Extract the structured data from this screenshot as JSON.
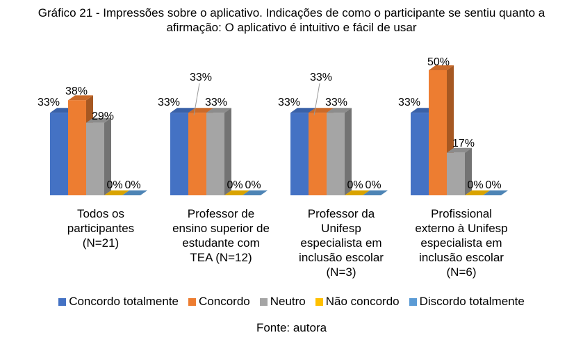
{
  "title_line1": "Gráfico 21 - Impressões sobre o aplicativo. Indicações de como o participante se sentiu quanto a",
  "title_line2": "afirmação: O aplicativo é intuitivo e fácil de usar",
  "source": "Fonte: autora",
  "chart_data": {
    "type": "bar",
    "title": "Gráfico 21 - Impressões sobre o aplicativo. Indicações de como o participante se sentiu quanto a afirmação: O aplicativo é intuitivo e fácil de usar",
    "categories": [
      [
        "Todos os",
        "participantes",
        "(N=21)"
      ],
      [
        "Professor de",
        "ensino superior de",
        "estudante com",
        "TEA (N=12)"
      ],
      [
        "Professor da",
        "Unifesp",
        "especialista em",
        "inclusão escolar",
        "(N=3)"
      ],
      [
        "Profissional",
        "externo à Unifesp",
        "especialista em",
        "inclusão escolar",
        "(N=6)"
      ]
    ],
    "series": [
      {
        "name": "Concordo totalmente",
        "color": "#4472C4",
        "values": [
          33,
          33,
          33,
          33
        ],
        "labels": [
          "33%",
          "33%",
          "33%",
          "33%"
        ]
      },
      {
        "name": "Concordo",
        "color": "#ED7D31",
        "values": [
          38,
          33,
          33,
          50
        ],
        "labels": [
          "38%",
          "33%",
          "33%",
          "50%"
        ]
      },
      {
        "name": "Neutro",
        "color": "#A5A5A5",
        "values": [
          29,
          33,
          33,
          17
        ],
        "labels": [
          "29%",
          "33%",
          "33%",
          "17%"
        ]
      },
      {
        "name": "Não concordo",
        "color": "#FFC000",
        "values": [
          0,
          0,
          0,
          0
        ],
        "labels": [
          "0%",
          "0%",
          "0%",
          "0%"
        ]
      },
      {
        "name": "Discordo totalmente",
        "color": "#5B9BD5",
        "values": [
          0,
          0,
          0,
          0
        ],
        "labels": [
          "0%",
          "0%",
          "0%",
          "0%"
        ]
      }
    ],
    "ylim": [
      0,
      50
    ],
    "legend_position": "bottom",
    "grid": false
  }
}
